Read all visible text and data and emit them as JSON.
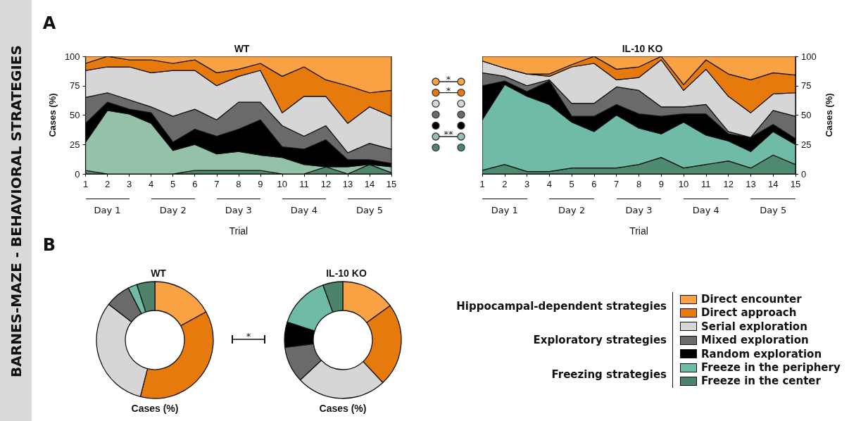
{
  "chart_data": [
    {
      "type": "area",
      "title": "WT",
      "xlabel": "Trial",
      "ylabel": "Cases (%)",
      "stacked": true,
      "grid": false,
      "legend": false,
      "x": [
        1,
        2,
        3,
        4,
        5,
        6,
        7,
        8,
        9,
        10,
        11,
        12,
        13,
        14,
        15
      ],
      "xlim": [
        1,
        15
      ],
      "xticks": [
        1,
        2,
        3,
        4,
        5,
        6,
        7,
        8,
        9,
        10,
        11,
        12,
        13,
        14,
        15
      ],
      "ylim": [
        0,
        100
      ],
      "yticks": [
        0,
        25,
        50,
        75,
        100
      ],
      "annotations": [
        "Day 1",
        "Day 2",
        "Day 3",
        "Day 4",
        "Day 5",
        "BARNES-MAZE - BEHAVIORAL STRATEGIES",
        "A",
        "*",
        "*",
        "**"
      ],
      "series": [
        {
          "color": "#4f876c",
          "values": [
            3,
            0,
            0,
            0,
            0,
            3,
            3,
            3,
            3,
            0,
            0,
            6,
            0,
            8,
            1
          ]
        },
        {
          "color": "#93c2a9",
          "values": [
            24,
            54,
            51,
            43,
            20,
            22,
            14,
            16,
            13,
            14,
            8,
            0,
            6,
            0,
            5
          ]
        },
        {
          "color": "#000000",
          "values": [
            16,
            7,
            4,
            9,
            7,
            13,
            15,
            19,
            30,
            9,
            13,
            23,
            6,
            4,
            3
          ]
        },
        {
          "color": "#6a6a6a",
          "values": [
            22,
            8,
            8,
            5,
            22,
            17,
            14,
            23,
            15,
            18,
            11,
            12,
            6,
            14,
            12
          ]
        },
        {
          "color": "#d6d6d6",
          "values": [
            23,
            22,
            28,
            29,
            39,
            33,
            29,
            22,
            27,
            11,
            34,
            25,
            25,
            31,
            28
          ]
        },
        {
          "color": "#e77a0d",
          "values": [
            6,
            9,
            6,
            11,
            6,
            9,
            11,
            6,
            6,
            31,
            25,
            14,
            32,
            12,
            22
          ]
        },
        {
          "color": "#f9a243",
          "values": [
            6,
            0,
            3,
            3,
            6,
            3,
            14,
            11,
            6,
            17,
            9,
            20,
            25,
            31,
            29
          ]
        }
      ]
    },
    {
      "type": "area",
      "title": "IL-10 KO",
      "xlabel": "Trial",
      "y2label": "Cases (%)",
      "stacked": true,
      "grid": false,
      "legend": false,
      "x": [
        1,
        2,
        3,
        4,
        5,
        6,
        7,
        8,
        9,
        10,
        11,
        12,
        13,
        14,
        15
      ],
      "xlim": [
        1,
        15
      ],
      "xticks": [
        1,
        2,
        3,
        4,
        5,
        6,
        7,
        8,
        9,
        10,
        11,
        12,
        13,
        14,
        15
      ],
      "y2lim": [
        0,
        100
      ],
      "y2ticks": [
        0,
        25,
        50,
        75,
        100
      ],
      "annotations": [
        "Day 1",
        "Day 2",
        "Day 3",
        "Day 4",
        "Day 5"
      ],
      "series": [
        {
          "color": "#4d8a70",
          "axis": "y2",
          "values": [
            3,
            8,
            2,
            2,
            5,
            5,
            5,
            8,
            14,
            5,
            8,
            11,
            5,
            16,
            8
          ]
        },
        {
          "color": "#70bba8",
          "axis": "y2",
          "values": [
            43,
            68,
            64,
            57,
            39,
            31,
            45,
            31,
            20,
            39,
            25,
            17,
            14,
            20,
            17
          ]
        },
        {
          "color": "#000000",
          "axis": "y2",
          "values": [
            29,
            3,
            4,
            20,
            5,
            13,
            9,
            12,
            15,
            7,
            18,
            6,
            12,
            6,
            5
          ]
        },
        {
          "color": "#6a6a6a",
          "axis": "y2",
          "values": [
            11,
            4,
            5,
            1,
            11,
            11,
            15,
            20,
            8,
            6,
            8,
            2,
            0,
            12,
            19
          ]
        },
        {
          "color": "#d6d6d6",
          "axis": "y2",
          "values": [
            10,
            7,
            10,
            3,
            31,
            34,
            6,
            11,
            40,
            14,
            30,
            30,
            21,
            14,
            20
          ]
        },
        {
          "color": "#e77a0d",
          "axis": "y2",
          "values": [
            0,
            0,
            0,
            2,
            2,
            6,
            9,
            9,
            3,
            5,
            8,
            19,
            28,
            18,
            15
          ]
        },
        {
          "color": "#f9a243",
          "axis": "y2",
          "values": [
            4,
            10,
            15,
            15,
            7,
            0,
            11,
            9,
            0,
            24,
            3,
            15,
            20,
            14,
            16
          ]
        }
      ]
    },
    {
      "type": "donut",
      "title": "WT",
      "xlabel": "Cases (%)",
      "legend": "right",
      "annotations": [
        "B",
        "*",
        "Hippocampal-dependent strategies",
        "Exploratory strategies",
        "Freezing strategies"
      ],
      "categories": [
        "Direct encounter",
        "Direct approach",
        "Serial exploration",
        "Mixed exploration",
        "Random exploration",
        "Freeze in the periphery",
        "Freeze in the center"
      ],
      "values": [
        17,
        37,
        31.5,
        7,
        0,
        2.5,
        5
      ],
      "colors": [
        "#f9a243",
        "#e77a0d",
        "#d6d6d6",
        "#6a6a6a",
        "#000000",
        "#70bba8",
        "#4e836b"
      ]
    },
    {
      "type": "donut",
      "title": "IL-10 KO",
      "xlabel": "Cases (%)",
      "legend": false,
      "categories": [
        null,
        null,
        null,
        null,
        null,
        null,
        null
      ],
      "values": [
        15,
        23,
        25,
        10,
        7,
        14.5,
        5.5
      ],
      "colors": [
        "#f9a243",
        "#e77a0d",
        "#d6d6d6",
        "#6a6a6a",
        "#000000",
        "#70bba8",
        "#4e836b"
      ]
    }
  ]
}
